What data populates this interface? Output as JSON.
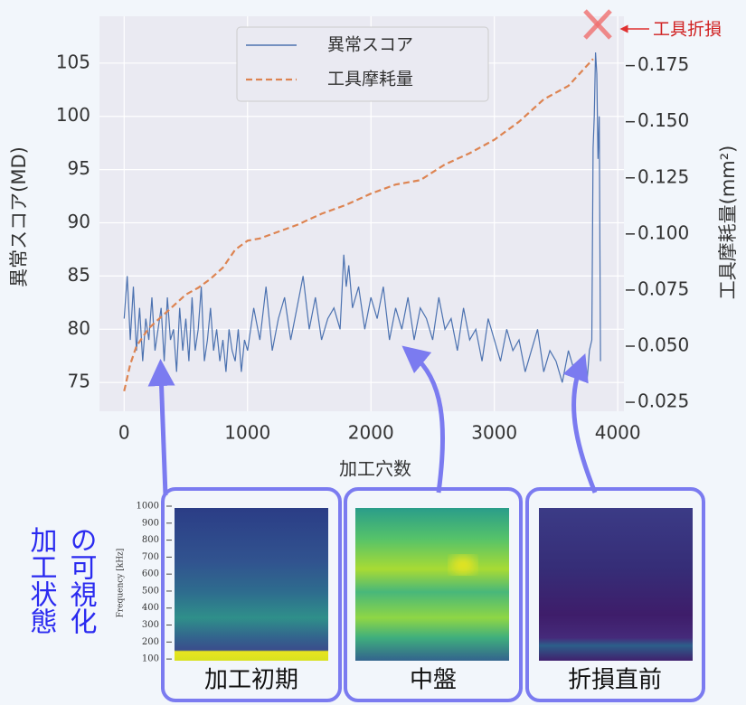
{
  "chart_data": {
    "type": "line",
    "ylabel": "異常スコア(MD)",
    "y2label": "工具摩耗量(mm²)",
    "xlabel": "加工穴数",
    "xlim": [
      -200,
      4050
    ],
    "xticks": [
      0,
      1000,
      2000,
      3000,
      4000
    ],
    "ylim": [
      72.3,
      109.4
    ],
    "yticks": [
      75,
      80,
      85,
      90,
      95,
      100,
      105
    ],
    "y2lim": [
      0.021,
      0.197
    ],
    "y2ticks": [
      0.025,
      {
        "value": 0.05,
        "label": "0.050"
      },
      0.075,
      {
        "value": 0.1,
        "label": "0.100"
      },
      0.125,
      {
        "value": 0.15,
        "label": "0.150"
      },
      0.175
    ],
    "grid": true,
    "legend": "upper center",
    "annotation": "工具折損",
    "series": [
      {
        "name": "異常スコア",
        "color": "#4c72b0",
        "axis": "y",
        "x": [
          0,
          25,
          50,
          75,
          100,
          125,
          150,
          175,
          200,
          225,
          250,
          275,
          300,
          325,
          350,
          375,
          400,
          425,
          450,
          475,
          500,
          525,
          550,
          575,
          600,
          625,
          650,
          675,
          700,
          725,
          750,
          775,
          800,
          825,
          850,
          875,
          900,
          925,
          950,
          975,
          1000,
          1050,
          1100,
          1150,
          1200,
          1250,
          1300,
          1350,
          1400,
          1450,
          1500,
          1550,
          1600,
          1650,
          1700,
          1750,
          1780,
          1800,
          1820,
          1850,
          1900,
          1950,
          2000,
          2050,
          2100,
          2150,
          2200,
          2250,
          2300,
          2350,
          2400,
          2450,
          2500,
          2550,
          2600,
          2650,
          2700,
          2750,
          2800,
          2850,
          2900,
          2950,
          3000,
          3050,
          3100,
          3150,
          3200,
          3250,
          3300,
          3350,
          3400,
          3450,
          3500,
          3550,
          3600,
          3650,
          3700,
          3750,
          3770,
          3790,
          3800,
          3810,
          3820,
          3830,
          3840,
          3850,
          3860
        ],
        "values": [
          81,
          85,
          79,
          84,
          78,
          82,
          77,
          81,
          79,
          83,
          78,
          80,
          82,
          77,
          83,
          79,
          80,
          76,
          82,
          78,
          81,
          77,
          83,
          78,
          80,
          84,
          77,
          79,
          82,
          78,
          80,
          77,
          79,
          76,
          80,
          78,
          77,
          80,
          76,
          79,
          78,
          82,
          79,
          84,
          78,
          81,
          83,
          79,
          82,
          85,
          80,
          83,
          79,
          81,
          82,
          80,
          87,
          84,
          86,
          82,
          84,
          80,
          83,
          81,
          84,
          79,
          82,
          80,
          83,
          79,
          82,
          81,
          79,
          83,
          80,
          81,
          78,
          82,
          79,
          80,
          77,
          81,
          79,
          77,
          80,
          78,
          79,
          76,
          78,
          80,
          76,
          78,
          77,
          75,
          78,
          76,
          77,
          75,
          78,
          79,
          97,
          100,
          106,
          104,
          96,
          100,
          77
        ],
        "value_labels": null
      },
      {
        "name": "工具摩耗量",
        "color": "#dd8452",
        "axis": "y2",
        "x": [
          0,
          50,
          100,
          200,
          300,
          400,
          500,
          600,
          700,
          800,
          900,
          1000,
          1100,
          1200,
          1400,
          1600,
          1800,
          2000,
          2200,
          2400,
          2600,
          2800,
          3000,
          3200,
          3400,
          3600,
          3800
        ],
        "values": [
          0.03,
          0.042,
          0.05,
          0.058,
          0.063,
          0.068,
          0.073,
          0.076,
          0.08,
          0.085,
          0.093,
          0.097,
          0.098,
          0.1,
          0.104,
          0.109,
          0.113,
          0.118,
          0.122,
          0.124,
          0.131,
          0.136,
          0.142,
          0.15,
          0.16,
          0.166,
          0.178
        ]
      }
    ]
  },
  "visualization": {
    "title_lines": [
      "加工状態",
      "の可視化"
    ],
    "ylabel": "Frequency [kHz]",
    "ylim": [
      90,
      1000
    ],
    "yticks": [
      100,
      200,
      300,
      400,
      500,
      600,
      700,
      800,
      900,
      1000
    ],
    "panels": [
      "加工初期",
      "中盤",
      "折損直前"
    ]
  }
}
